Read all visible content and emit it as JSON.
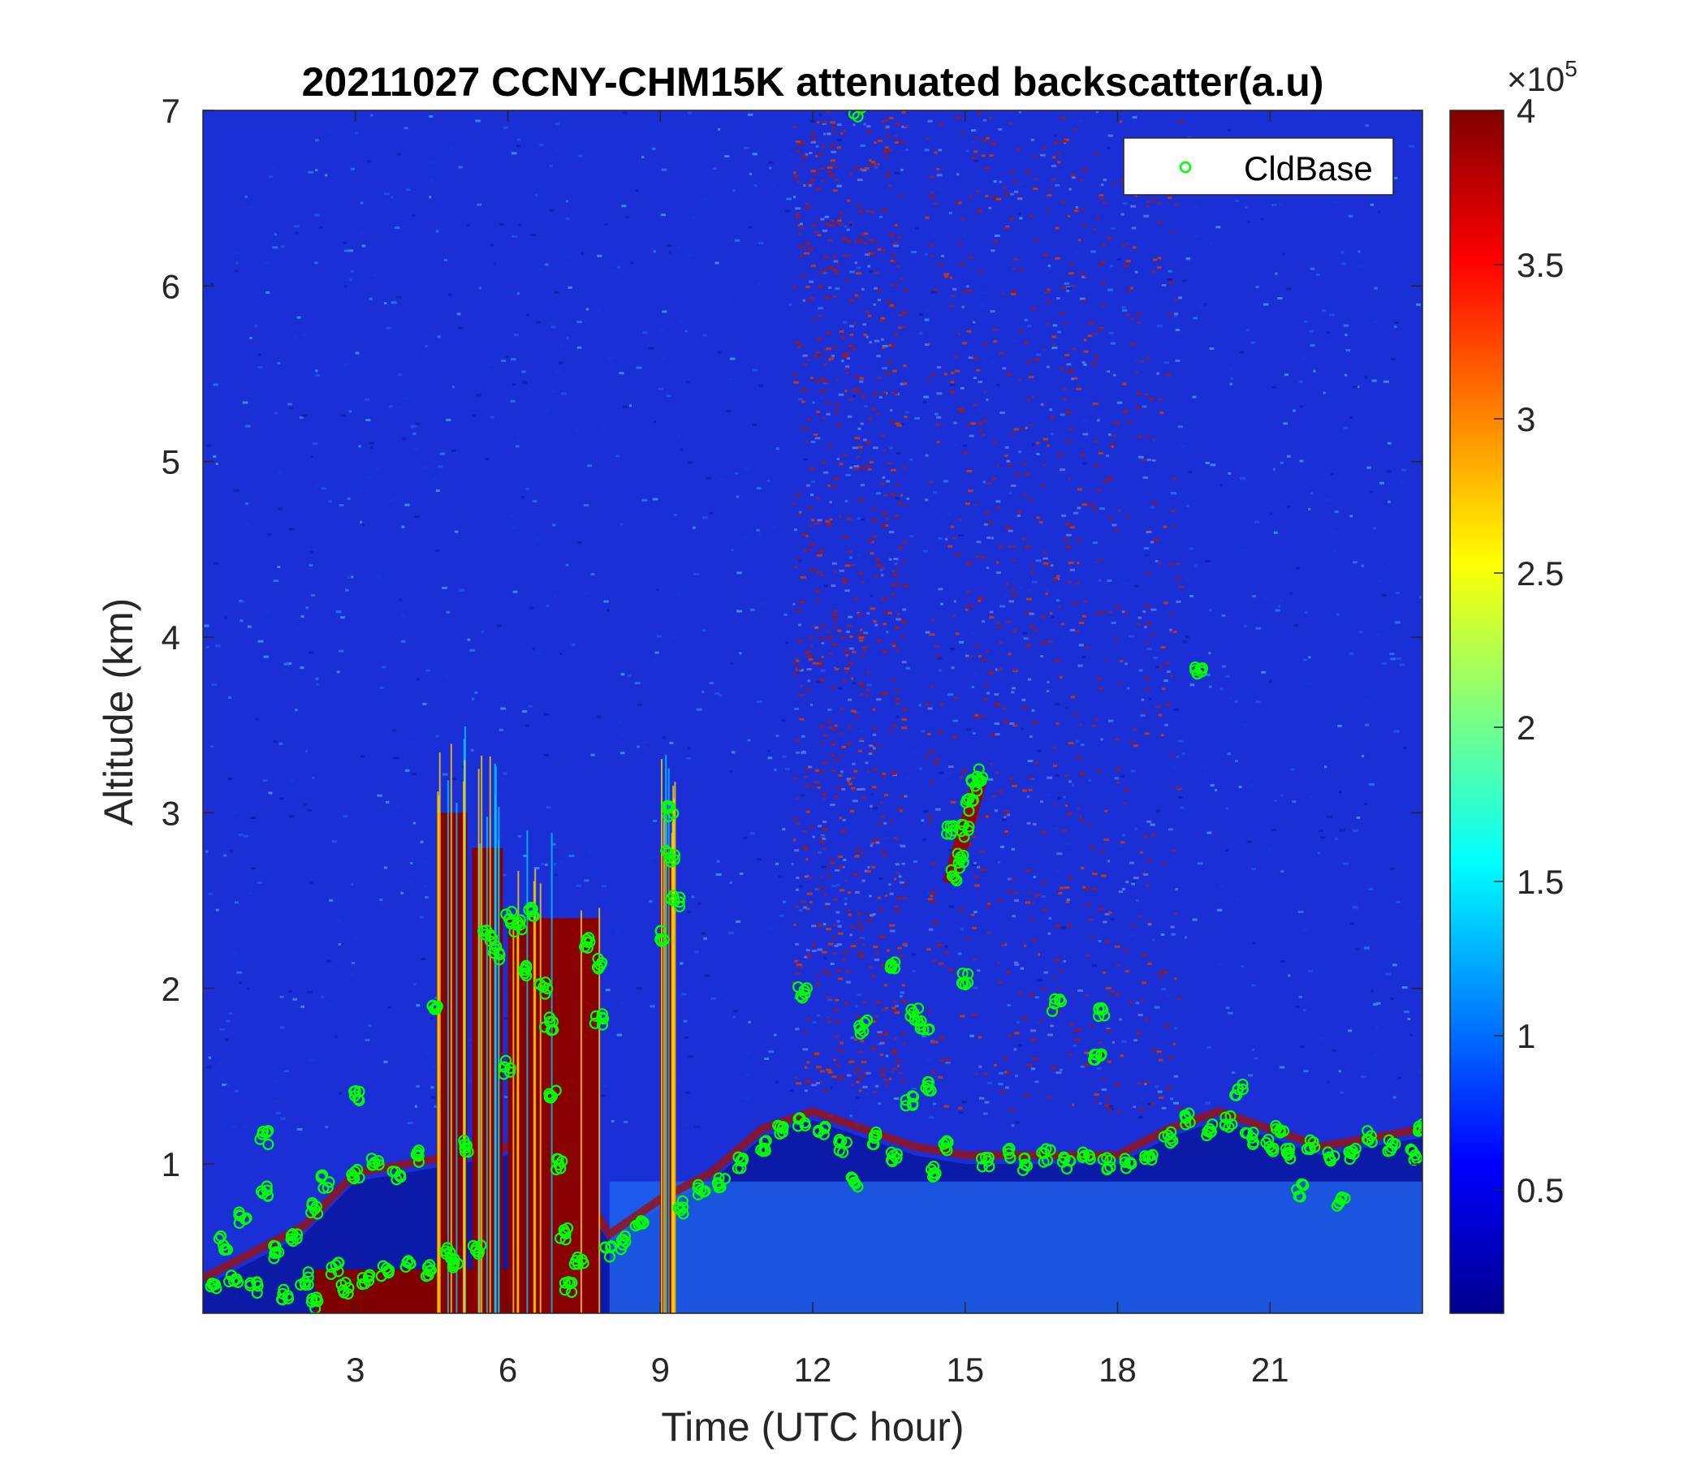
{
  "chart_data": {
    "type": "heatmap",
    "title": "20211027 CCNY-CHM15K attenuated backscatter(a.u)",
    "xlabel": "Time (UTC hour)",
    "ylabel": "Altitude (km)",
    "xlim": [
      0,
      24
    ],
    "ylim": [
      0.15,
      7
    ],
    "xticks": [
      3,
      6,
      9,
      12,
      15,
      18,
      21
    ],
    "yticks": [
      1,
      2,
      3,
      4,
      5,
      6,
      7
    ],
    "colorbar": {
      "colormap": "jet",
      "clim": [
        10000,
        400000
      ],
      "ticks": [
        0.5,
        1,
        1.5,
        2,
        2.5,
        3,
        3.5,
        4
      ],
      "multiplier_base": "×10",
      "multiplier_exponent": "5"
    },
    "legend": {
      "entries": [
        "CldBase"
      ],
      "placement": "top-right"
    },
    "colors": {
      "marker": "#00ff00",
      "low": "#00008f",
      "high": "#800000"
    },
    "features": {
      "boundary_layer_top_km": [
        {
          "t": 0,
          "z": 0.3
        },
        {
          "t": 1,
          "z": 0.45
        },
        {
          "t": 2,
          "z": 0.6
        },
        {
          "t": 3,
          "z": 0.9
        },
        {
          "t": 4,
          "z": 0.95
        },
        {
          "t": 5,
          "z": 1.0
        },
        {
          "t": 6,
          "z": 1.05
        },
        {
          "t": 7,
          "z": 1.0
        },
        {
          "t": 8,
          "z": 0.55
        },
        {
          "t": 9,
          "z": 0.75
        },
        {
          "t": 10,
          "z": 0.9
        },
        {
          "t": 11,
          "z": 1.15
        },
        {
          "t": 12,
          "z": 1.25
        },
        {
          "t": 13,
          "z": 1.15
        },
        {
          "t": 14,
          "z": 1.05
        },
        {
          "t": 15,
          "z": 1.0
        },
        {
          "t": 16,
          "z": 1.0
        },
        {
          "t": 17,
          "z": 1.0
        },
        {
          "t": 18,
          "z": 1.0
        },
        {
          "t": 19,
          "z": 1.15
        },
        {
          "t": 20,
          "z": 1.25
        },
        {
          "t": 21,
          "z": 1.15
        },
        {
          "t": 22,
          "z": 1.05
        },
        {
          "t": 23,
          "z": 1.1
        },
        {
          "t": 24,
          "z": 1.15
        }
      ],
      "dense_cloud_columns": [
        {
          "t0": 4.6,
          "t1": 5.2,
          "ztop": 3.0
        },
        {
          "t0": 5.3,
          "t1": 5.9,
          "ztop": 2.8
        },
        {
          "t0": 6.0,
          "t1": 7.8,
          "ztop": 2.4
        },
        {
          "t0": 9.0,
          "t1": 9.3,
          "ztop": 2.8
        }
      ],
      "aerosol_curtain_columns": [
        {
          "t0": 11.6,
          "t1": 13.8,
          "zmin": 1.4,
          "zmax": 7.0
        },
        {
          "t0": 14.2,
          "t1": 19.2,
          "zmin": 1.3,
          "zmax": 7.0
        }
      ],
      "sloped_cloud": [
        {
          "t": 14.7,
          "z": 2.6
        },
        {
          "t": 14.9,
          "z": 2.8
        },
        {
          "t": 15.1,
          "z": 3.0
        },
        {
          "t": 15.3,
          "z": 3.2
        }
      ]
    },
    "series": [
      {
        "name": "CldBase",
        "marker": "circle",
        "points": [
          {
            "t": 0.2,
            "z": 0.3
          },
          {
            "t": 0.4,
            "z": 0.55
          },
          {
            "t": 0.6,
            "z": 0.35
          },
          {
            "t": 0.8,
            "z": 0.7
          },
          {
            "t": 1.0,
            "z": 0.3
          },
          {
            "t": 1.2,
            "z": 0.85
          },
          {
            "t": 1.2,
            "z": 1.15
          },
          {
            "t": 1.4,
            "z": 0.5
          },
          {
            "t": 1.6,
            "z": 0.25
          },
          {
            "t": 1.8,
            "z": 0.6
          },
          {
            "t": 2.0,
            "z": 0.35
          },
          {
            "t": 2.2,
            "z": 0.75
          },
          {
            "t": 2.2,
            "z": 0.2
          },
          {
            "t": 2.4,
            "z": 0.9
          },
          {
            "t": 2.6,
            "z": 0.4
          },
          {
            "t": 2.8,
            "z": 0.3
          },
          {
            "t": 3.0,
            "z": 0.95
          },
          {
            "t": 3.0,
            "z": 1.38
          },
          {
            "t": 3.2,
            "z": 0.35
          },
          {
            "t": 3.4,
            "z": 1.0
          },
          {
            "t": 3.6,
            "z": 0.4
          },
          {
            "t": 3.8,
            "z": 0.95
          },
          {
            "t": 4.0,
            "z": 0.45
          },
          {
            "t": 4.2,
            "z": 1.05
          },
          {
            "t": 4.4,
            "z": 0.4
          },
          {
            "t": 4.6,
            "z": 1.9
          },
          {
            "t": 4.8,
            "z": 0.5
          },
          {
            "t": 5.0,
            "z": 0.45
          },
          {
            "t": 5.2,
            "z": 1.1
          },
          {
            "t": 5.4,
            "z": 0.5
          },
          {
            "t": 5.6,
            "z": 2.3
          },
          {
            "t": 5.8,
            "z": 2.2
          },
          {
            "t": 6.0,
            "z": 2.4
          },
          {
            "t": 6.0,
            "z": 1.55
          },
          {
            "t": 6.2,
            "z": 2.35
          },
          {
            "t": 6.3,
            "z": 2.1
          },
          {
            "t": 6.5,
            "z": 2.45
          },
          {
            "t": 6.7,
            "z": 2.0
          },
          {
            "t": 6.8,
            "z": 1.8
          },
          {
            "t": 6.9,
            "z": 1.4
          },
          {
            "t": 7.0,
            "z": 1.0
          },
          {
            "t": 7.1,
            "z": 0.6
          },
          {
            "t": 7.2,
            "z": 0.3
          },
          {
            "t": 7.4,
            "z": 0.45
          },
          {
            "t": 7.6,
            "z": 2.25
          },
          {
            "t": 7.8,
            "z": 2.15
          },
          {
            "t": 7.8,
            "z": 1.82
          },
          {
            "t": 8.0,
            "z": 0.5
          },
          {
            "t": 8.3,
            "z": 0.55
          },
          {
            "t": 8.6,
            "z": 0.65
          },
          {
            "t": 9.0,
            "z": 2.3
          },
          {
            "t": 9.2,
            "z": 3.0
          },
          {
            "t": 9.2,
            "z": 2.75
          },
          {
            "t": 9.3,
            "z": 2.5
          },
          {
            "t": 9.4,
            "z": 0.75
          },
          {
            "t": 9.8,
            "z": 0.85
          },
          {
            "t": 10.2,
            "z": 0.9
          },
          {
            "t": 10.6,
            "z": 1.0
          },
          {
            "t": 11.0,
            "z": 1.1
          },
          {
            "t": 11.4,
            "z": 1.2
          },
          {
            "t": 11.8,
            "z": 1.25
          },
          {
            "t": 11.8,
            "z": 1.97
          },
          {
            "t": 12.2,
            "z": 1.2
          },
          {
            "t": 12.6,
            "z": 1.1
          },
          {
            "t": 12.8,
            "z": 0.9
          },
          {
            "t": 12.9,
            "z": 7.0
          },
          {
            "t": 13.0,
            "z": 1.78
          },
          {
            "t": 13.2,
            "z": 1.15
          },
          {
            "t": 13.6,
            "z": 2.15
          },
          {
            "t": 13.6,
            "z": 1.05
          },
          {
            "t": 13.9,
            "z": 1.35
          },
          {
            "t": 14.0,
            "z": 1.85
          },
          {
            "t": 14.2,
            "z": 1.8
          },
          {
            "t": 14.3,
            "z": 1.45
          },
          {
            "t": 14.4,
            "z": 0.95
          },
          {
            "t": 14.6,
            "z": 1.1
          },
          {
            "t": 14.7,
            "z": 2.9
          },
          {
            "t": 14.8,
            "z": 2.65
          },
          {
            "t": 14.9,
            "z": 2.75
          },
          {
            "t": 15.0,
            "z": 2.05
          },
          {
            "t": 15.0,
            "z": 2.9
          },
          {
            "t": 15.1,
            "z": 3.05
          },
          {
            "t": 15.2,
            "z": 3.15
          },
          {
            "t": 15.3,
            "z": 3.22
          },
          {
            "t": 15.4,
            "z": 1.0
          },
          {
            "t": 15.8,
            "z": 1.05
          },
          {
            "t": 16.2,
            "z": 1.0
          },
          {
            "t": 16.6,
            "z": 1.05
          },
          {
            "t": 16.8,
            "z": 1.9
          },
          {
            "t": 17.0,
            "z": 1.0
          },
          {
            "t": 17.4,
            "z": 1.05
          },
          {
            "t": 17.6,
            "z": 1.6
          },
          {
            "t": 17.7,
            "z": 1.85
          },
          {
            "t": 17.8,
            "z": 1.0
          },
          {
            "t": 18.2,
            "z": 1.0
          },
          {
            "t": 18.6,
            "z": 1.05
          },
          {
            "t": 19.0,
            "z": 1.15
          },
          {
            "t": 19.4,
            "z": 1.25
          },
          {
            "t": 19.6,
            "z": 3.82
          },
          {
            "t": 19.8,
            "z": 1.2
          },
          {
            "t": 20.2,
            "z": 1.25
          },
          {
            "t": 20.4,
            "z": 1.42
          },
          {
            "t": 20.6,
            "z": 1.15
          },
          {
            "t": 21.0,
            "z": 1.1
          },
          {
            "t": 21.2,
            "z": 1.2
          },
          {
            "t": 21.4,
            "z": 1.05
          },
          {
            "t": 21.6,
            "z": 0.85
          },
          {
            "t": 21.8,
            "z": 1.1
          },
          {
            "t": 22.2,
            "z": 1.05
          },
          {
            "t": 22.4,
            "z": 0.8
          },
          {
            "t": 22.6,
            "z": 1.05
          },
          {
            "t": 23.0,
            "z": 1.15
          },
          {
            "t": 23.4,
            "z": 1.1
          },
          {
            "t": 23.8,
            "z": 1.05
          },
          {
            "t": 24.0,
            "z": 1.22
          }
        ]
      }
    ]
  }
}
